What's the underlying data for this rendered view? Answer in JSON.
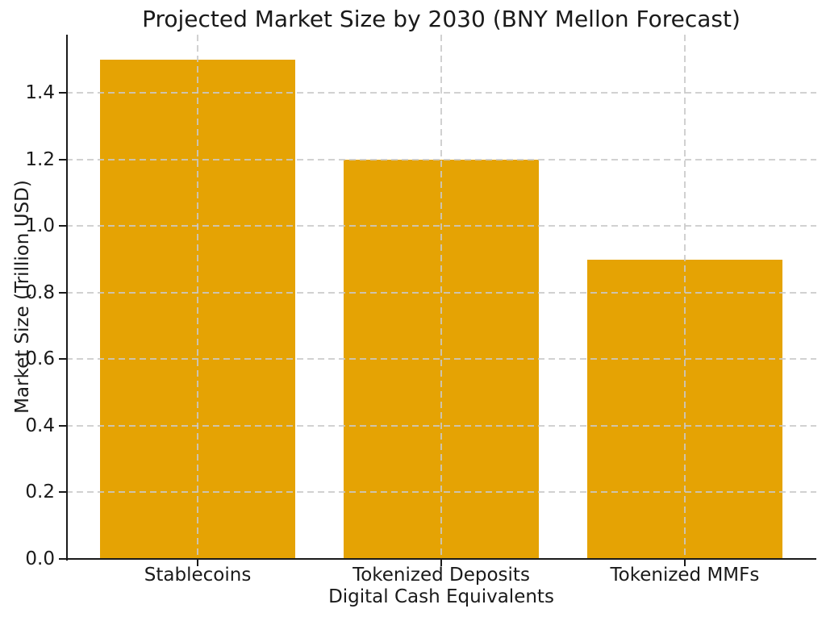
{
  "chart_data": {
    "type": "bar",
    "title": "Projected Market Size by 2030 (BNY Mellon Forecast)",
    "xlabel": "Digital Cash Equivalents",
    "ylabel": "Market Size (Trillion USD)",
    "categories": [
      "Stablecoins",
      "Tokenized Deposits",
      "Tokenized MMFs"
    ],
    "values": [
      1.5,
      1.2,
      0.9
    ],
    "yticks": [
      0.0,
      0.2,
      0.4,
      0.6,
      0.8,
      1.0,
      1.2,
      1.4
    ],
    "ylim": [
      0,
      1.575
    ],
    "bar_width_fraction": 0.8,
    "bar_color": "#E5A304",
    "grid": true,
    "grid_color": "#c9c9c9",
    "axis_color": "#1a1a1a",
    "text_color": "#1a1a1a",
    "background_color": "#ffffff",
    "legend": false
  }
}
